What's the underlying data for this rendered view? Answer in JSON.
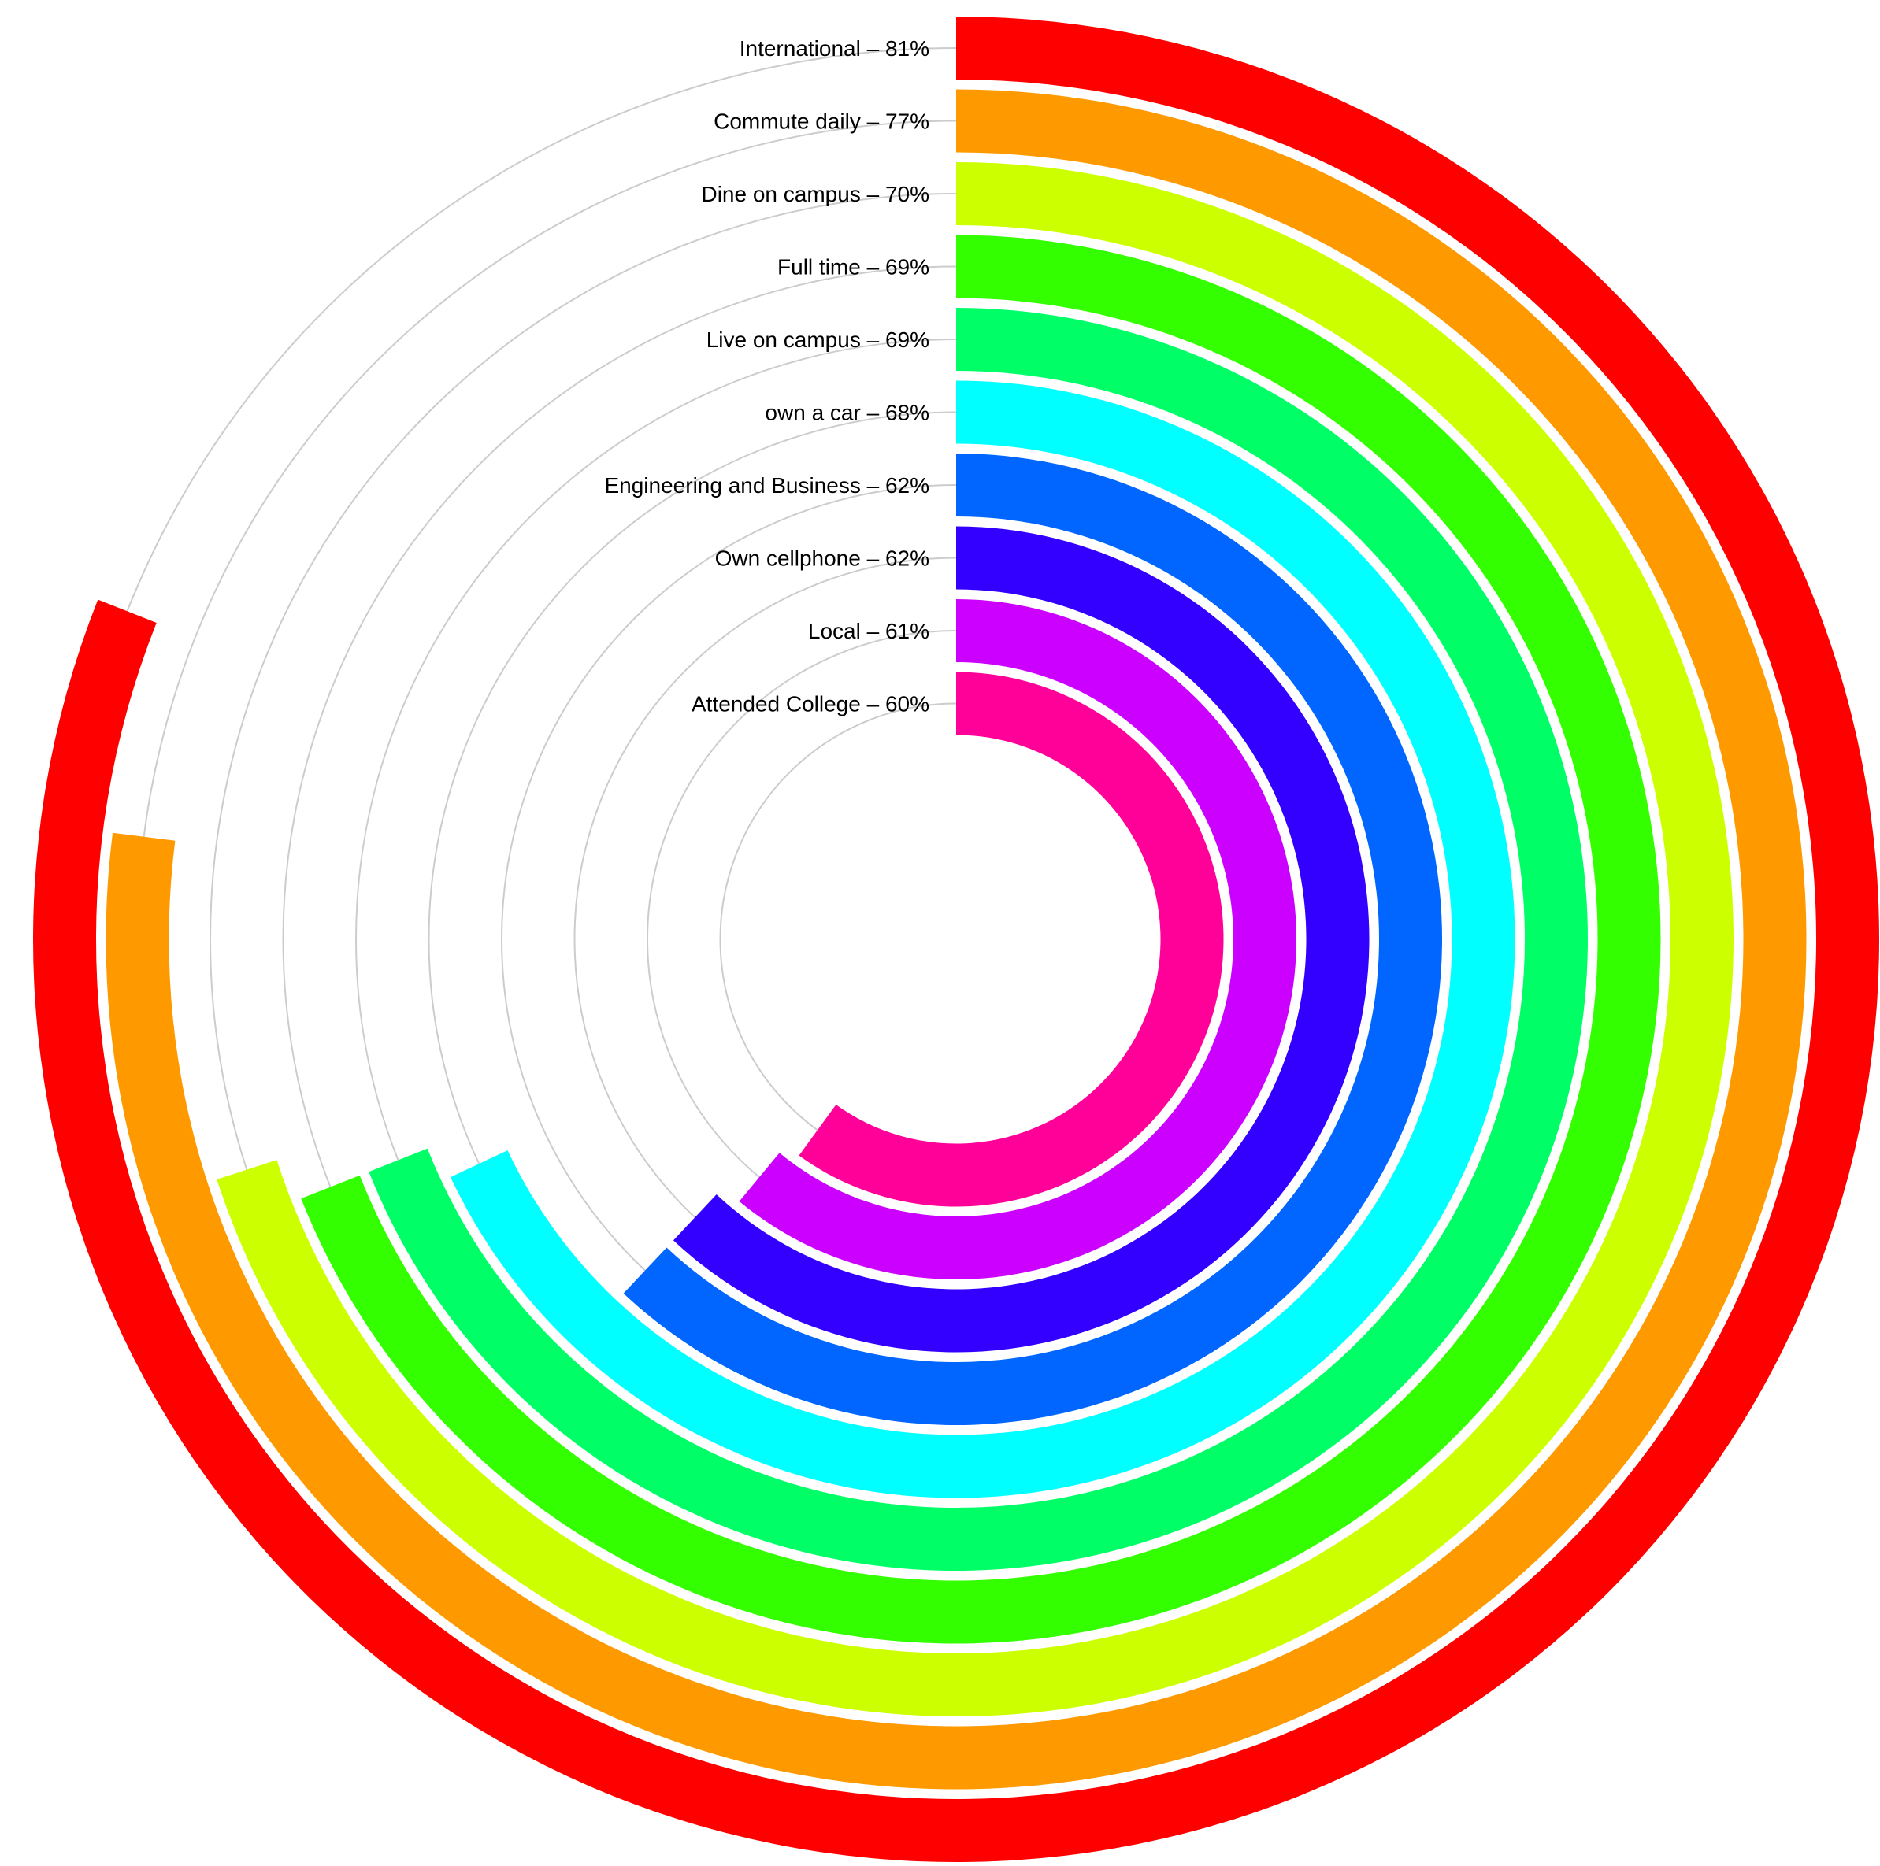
{
  "chart_data": {
    "type": "radial-bar",
    "title": "",
    "value_unit": "%",
    "axis_max": 100,
    "grid": true,
    "grid_color": "#cccccc",
    "series": [
      {
        "label": "International – 81%",
        "value": 81,
        "color": "#ff0000"
      },
      {
        "label": "Commute daily – 77%",
        "value": 77,
        "color": "#ff9900"
      },
      {
        "label": "Dine on campus – 70%",
        "value": 70,
        "color": "#ccff00"
      },
      {
        "label": "Full time – 69%",
        "value": 69,
        "color": "#33ff00"
      },
      {
        "label": "Live on campus – 69%",
        "value": 69,
        "color": "#00ff66"
      },
      {
        "label": "own a car – 68%",
        "value": 68,
        "color": "#00ffff"
      },
      {
        "label": "Engineering and Business – 62%",
        "value": 62,
        "color": "#0066ff"
      },
      {
        "label": "Own cellphone – 62%",
        "value": 62,
        "color": "#3300ff"
      },
      {
        "label": "Local – 61%",
        "value": 61,
        "color": "#cc00ff"
      },
      {
        "label": "Attended College – 60%",
        "value": 60,
        "color": "#ff0099"
      }
    ]
  }
}
